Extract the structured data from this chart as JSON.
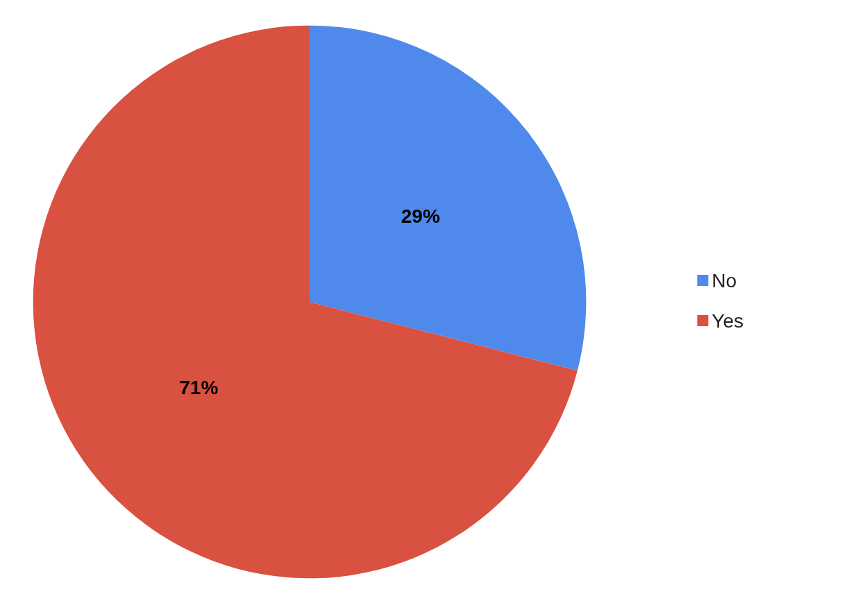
{
  "chart_data": {
    "type": "pie",
    "categories": [
      "No",
      "Yes"
    ],
    "values": [
      29,
      71
    ],
    "colors": [
      "#4f89eb",
      "#d95141"
    ],
    "value_labels": [
      "29%",
      "71%"
    ],
    "legend": "right"
  }
}
